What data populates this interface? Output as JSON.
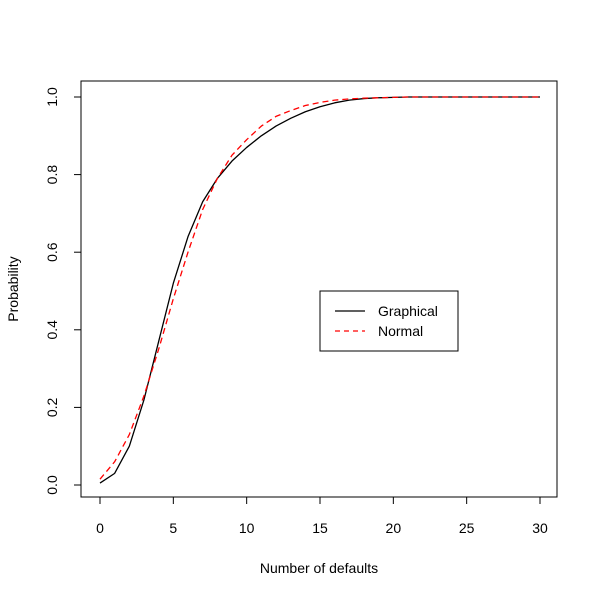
{
  "chart_data": {
    "type": "line",
    "title": "",
    "xlabel": "Number of defaults",
    "ylabel": "Probability",
    "xlim": [
      0,
      30
    ],
    "ylim": [
      0,
      1
    ],
    "x_ticks": [
      "0",
      "5",
      "10",
      "15",
      "20",
      "25",
      "30"
    ],
    "y_ticks": [
      "0.0",
      "0.2",
      "0.4",
      "0.6",
      "0.8",
      "1.0"
    ],
    "grid": false,
    "legend_position": "center-right",
    "x": [
      0,
      1,
      2,
      3,
      4,
      5,
      6,
      7,
      8,
      9,
      10,
      11,
      12,
      13,
      14,
      15,
      16,
      17,
      18,
      19,
      20,
      21,
      22,
      23,
      24,
      25,
      26,
      27,
      28,
      29,
      30
    ],
    "series": [
      {
        "name": "Graphical",
        "color": "#000000",
        "dash": "solid",
        "values": [
          0.005,
          0.03,
          0.1,
          0.22,
          0.37,
          0.52,
          0.64,
          0.73,
          0.79,
          0.835,
          0.87,
          0.9,
          0.925,
          0.945,
          0.962,
          0.975,
          0.985,
          0.992,
          0.996,
          0.998,
          0.999,
          1.0,
          1.0,
          1.0,
          1.0,
          1.0,
          1.0,
          1.0,
          1.0,
          1.0,
          1.0
        ]
      },
      {
        "name": "Normal",
        "color": "#ff0000",
        "dash": "dashed",
        "values": [
          0.015,
          0.06,
          0.13,
          0.23,
          0.35,
          0.48,
          0.6,
          0.71,
          0.79,
          0.85,
          0.89,
          0.925,
          0.95,
          0.965,
          0.978,
          0.986,
          0.992,
          0.995,
          0.997,
          0.998,
          0.999,
          1.0,
          1.0,
          1.0,
          1.0,
          1.0,
          1.0,
          1.0,
          1.0,
          1.0,
          1.0
        ]
      }
    ]
  }
}
